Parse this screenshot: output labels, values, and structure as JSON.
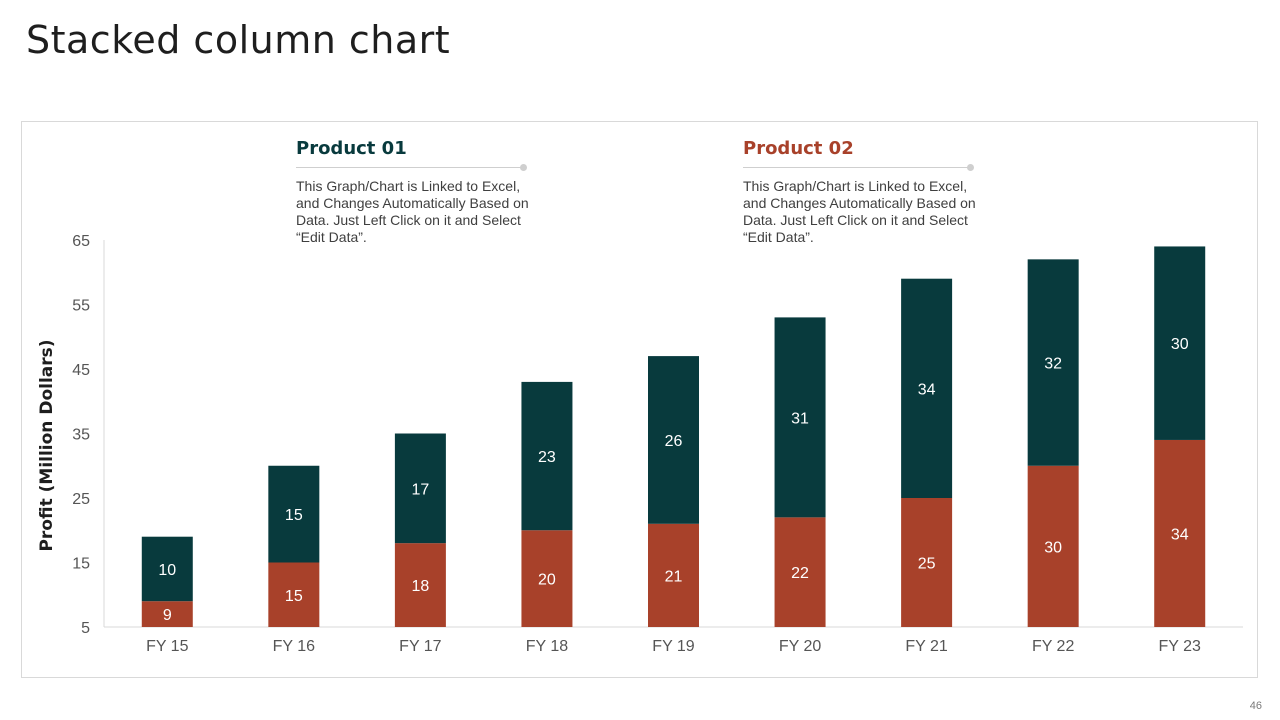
{
  "page_title": "Stacked column chart",
  "page_number": "46",
  "legend": [
    {
      "title": "Product 01",
      "color": "#083a3d",
      "description": "This Graph/Chart is Linked to Excel, and Changes Automatically Based on Data. Just Left Click on it and Select “Edit Data”."
    },
    {
      "title": "Product 02",
      "color": "#a8412a",
      "description": "This Graph/Chart is Linked to Excel, and Changes Automatically Based on Data. Just Left Click on it and Select “Edit Data”."
    }
  ],
  "chart_data": {
    "type": "bar",
    "stacked": true,
    "title": "",
    "xlabel": "",
    "ylabel": "Profit  (Million Dollars)",
    "ylim": [
      5,
      65
    ],
    "yticks": [
      5,
      15,
      25,
      35,
      45,
      55,
      65
    ],
    "categories": [
      "FY 15",
      "FY 16",
      "FY 17",
      "FY 18",
      "FY 19",
      "FY 20",
      "FY 21",
      "FY 22",
      "FY 23"
    ],
    "series": [
      {
        "name": "Product 02",
        "color": "#a8412a",
        "values": [
          9,
          15,
          18,
          20,
          21,
          22,
          25,
          30,
          34
        ]
      },
      {
        "name": "Product 01",
        "color": "#083a3d",
        "values": [
          10,
          15,
          17,
          23,
          26,
          31,
          34,
          32,
          30
        ]
      }
    ],
    "grid": false,
    "legend_position": "top"
  }
}
